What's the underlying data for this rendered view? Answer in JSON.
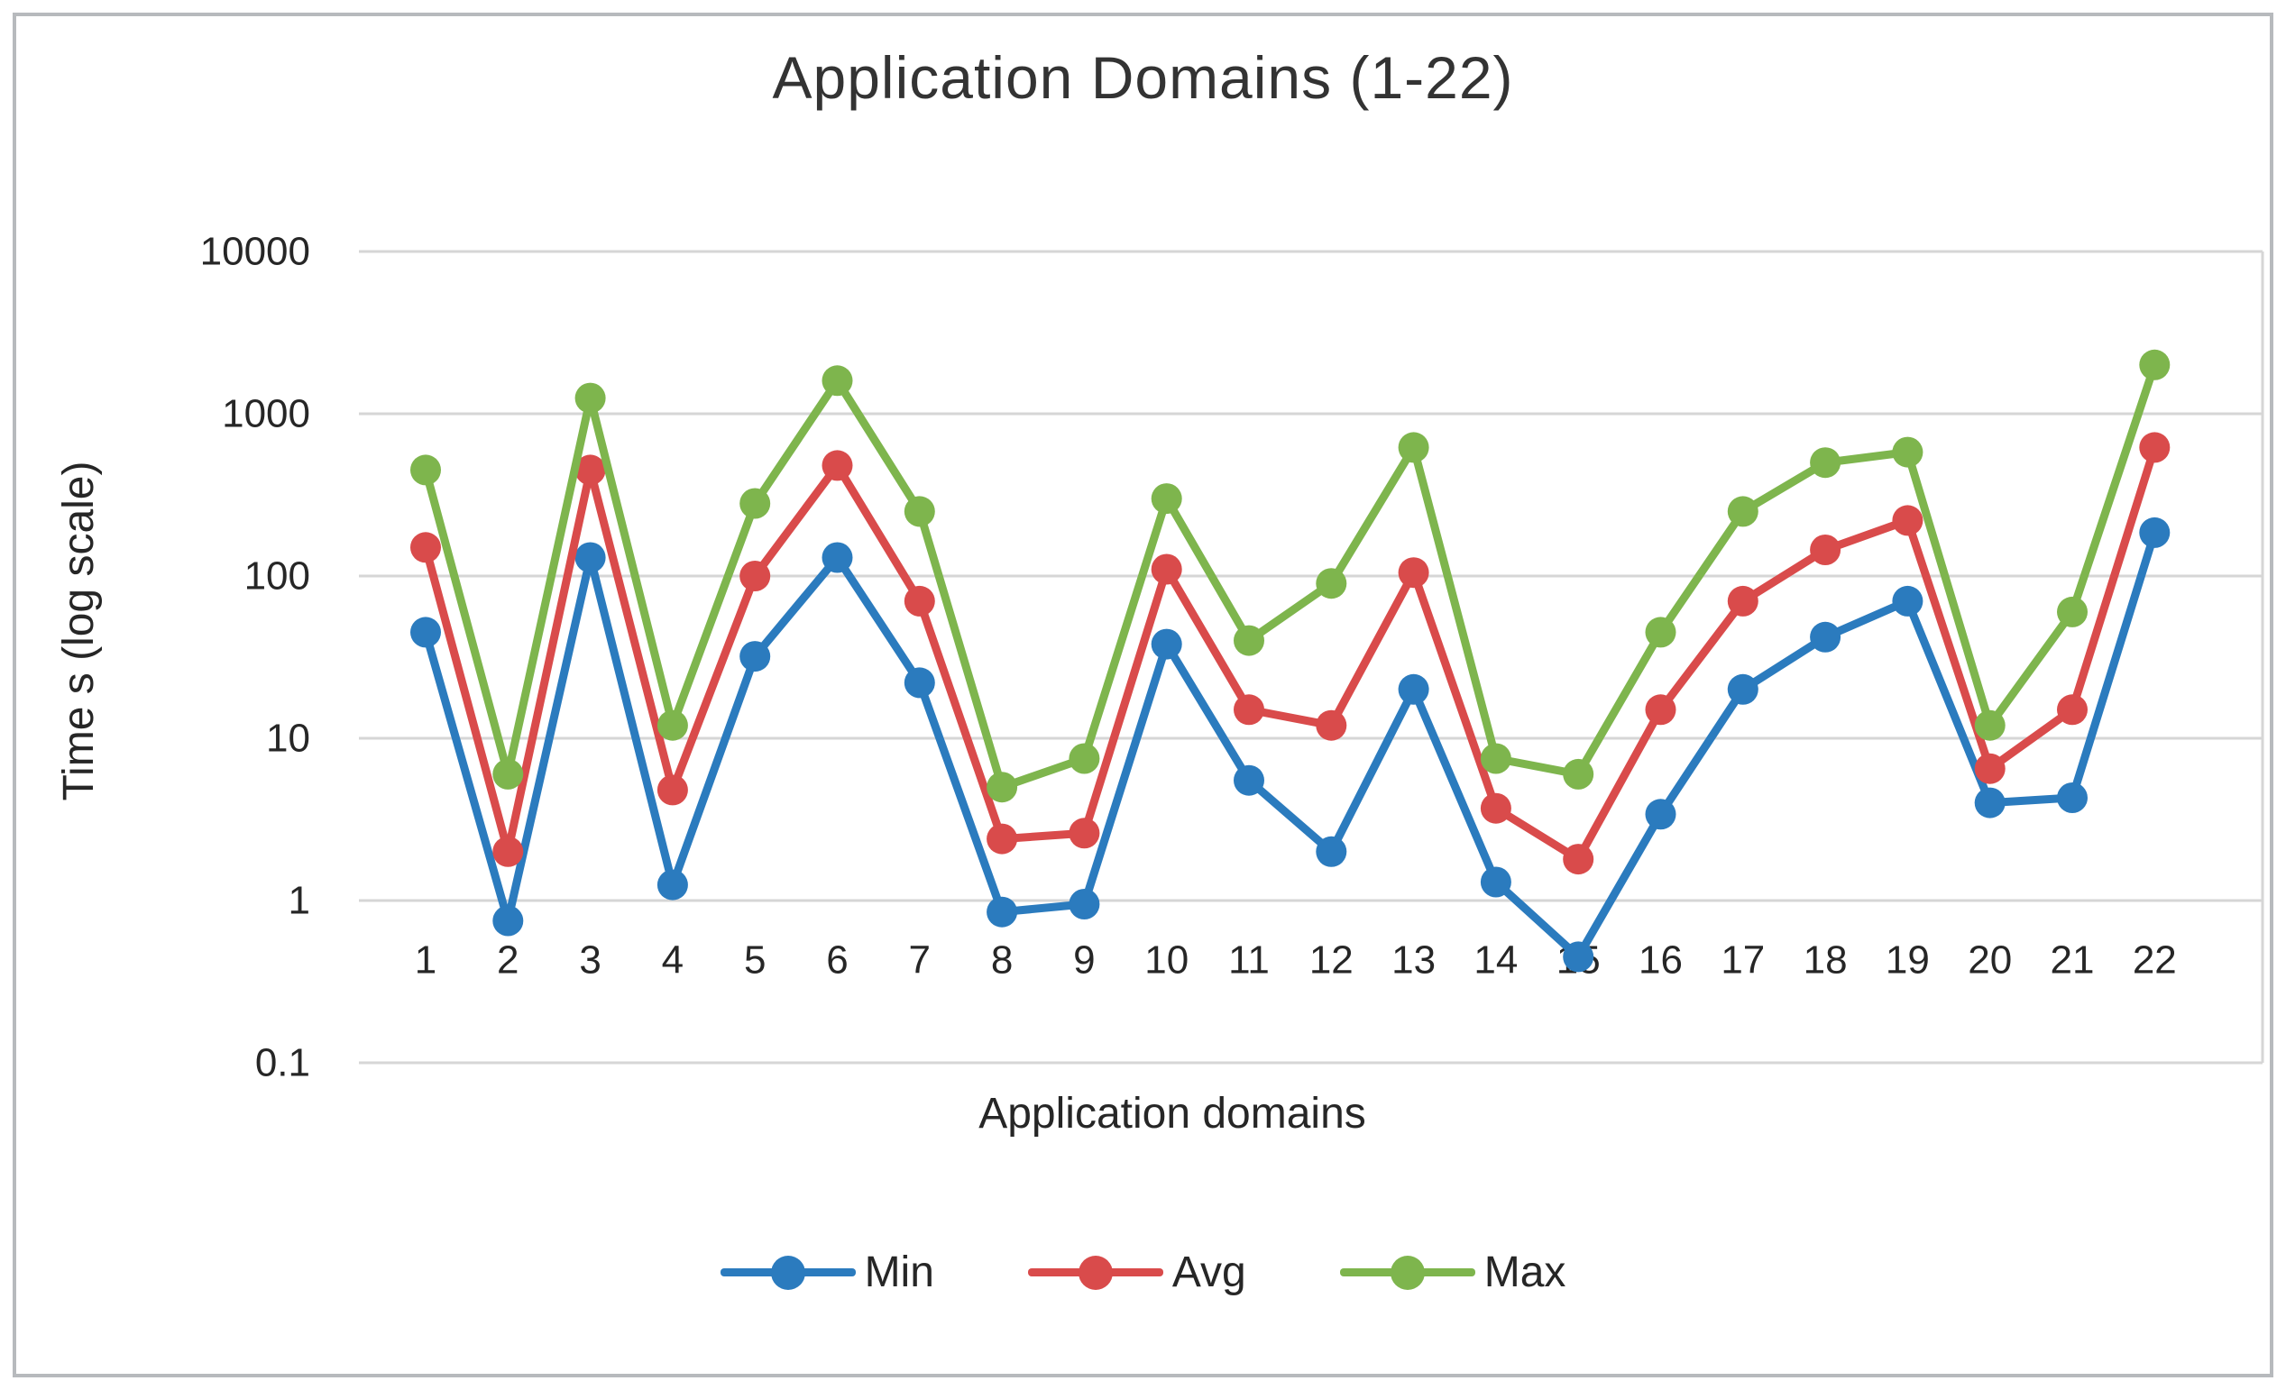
{
  "chart_data": {
    "type": "line",
    "title": "Application Domains (1-22)",
    "xlabel": "Application domains",
    "ylabel": "Time s (log scale)",
    "x": [
      1,
      2,
      3,
      4,
      5,
      6,
      7,
      8,
      9,
      10,
      11,
      12,
      13,
      14,
      15,
      16,
      17,
      18,
      19,
      20,
      21,
      22
    ],
    "series": [
      {
        "name": "Min",
        "color": "#2b7bbe",
        "values": [
          45,
          0.75,
          130,
          1.25,
          32,
          130,
          22,
          0.85,
          0.95,
          38,
          5.5,
          2,
          20,
          1.3,
          0.45,
          3.4,
          20,
          42,
          70,
          4,
          4.3,
          185
        ]
      },
      {
        "name": "Avg",
        "color": "#d94b4b",
        "values": [
          150,
          2,
          450,
          4.8,
          100,
          480,
          70,
          2.4,
          2.6,
          110,
          15,
          12,
          105,
          3.7,
          1.8,
          15,
          70,
          145,
          220,
          6.5,
          15,
          620
        ]
      },
      {
        "name": "Max",
        "color": "#7eb54d",
        "values": [
          450,
          6,
          1250,
          12,
          280,
          1600,
          250,
          5,
          7.5,
          300,
          40,
          90,
          620,
          7.5,
          6,
          45,
          250,
          500,
          580,
          12,
          60,
          2000
        ]
      }
    ],
    "y_scale": "log",
    "ylim": [
      0.1,
      10000
    ],
    "y_ticks": [
      10000,
      1000,
      100,
      10,
      1,
      0.1
    ],
    "grid": "horizontal",
    "legend_position": "bottom",
    "colors": {
      "gridline": "#d6d6d6",
      "axis_text": "#262626",
      "title_text": "#333333"
    }
  }
}
